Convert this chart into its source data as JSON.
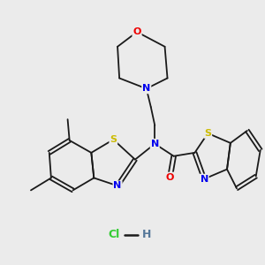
{
  "bg_color": "#ebebeb",
  "bond_color": "#1a1a1a",
  "colors": {
    "N": "#0000ee",
    "O": "#ee0000",
    "S": "#ccbb00",
    "C": "#1a1a1a",
    "Cl": "#33cc33",
    "H": "#557799"
  }
}
